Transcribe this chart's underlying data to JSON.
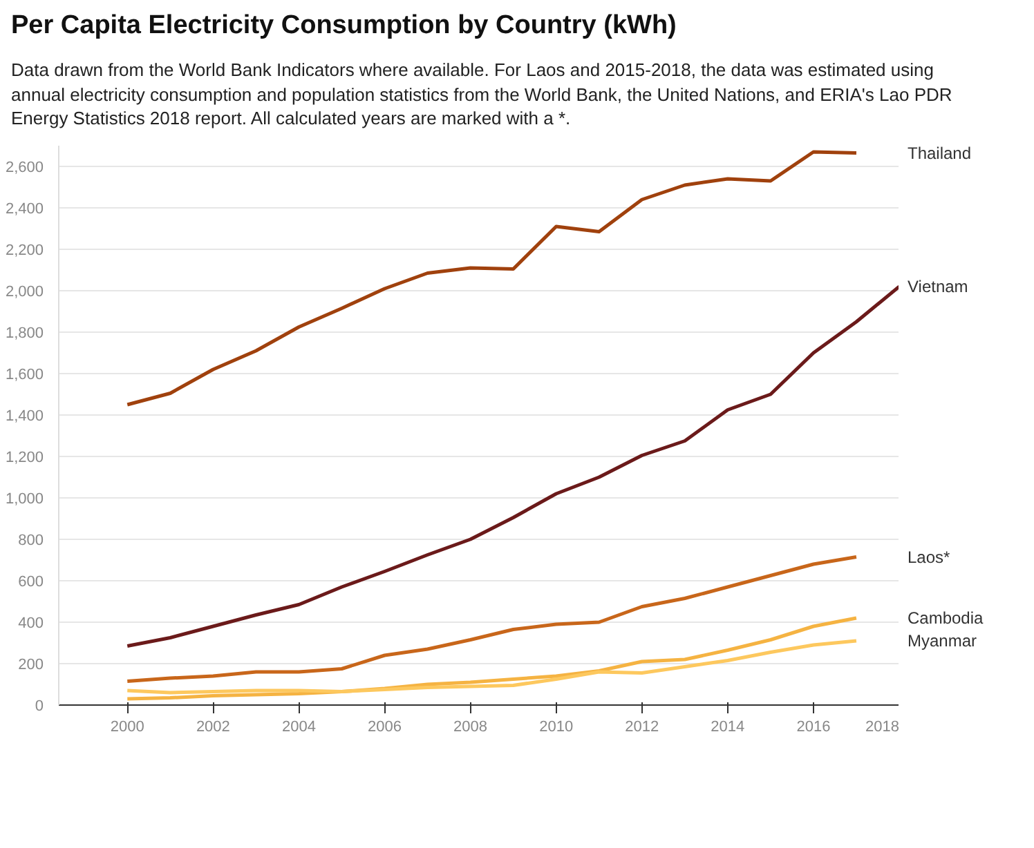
{
  "chart_data": {
    "type": "line",
    "title": "Per Capita Electricity Consumption by Country (kWh)",
    "subtitle": "Data drawn from the World Bank Indicators where available. For Laos and 2015-2018, the data was estimated using annual electricity consumption and population statistics from the World Bank, the United Nations, and ERIA's Lao PDR Energy Statistics 2018 report. All calculated years are marked with a *.",
    "x": [
      2000,
      2001,
      2002,
      2003,
      2004,
      2005,
      2006,
      2007,
      2008,
      2009,
      2010,
      2011,
      2012,
      2013,
      2014,
      2015,
      2016,
      2017,
      2018
    ],
    "series": [
      {
        "name": "Thailand",
        "color": "#a0410d",
        "values": [
          1450,
          1505,
          1620,
          1710,
          1825,
          1915,
          2010,
          2085,
          2110,
          2105,
          2310,
          2285,
          2440,
          2510,
          2540,
          2530,
          2670,
          2665,
          null
        ]
      },
      {
        "name": "Vietnam",
        "color": "#6b1a1a",
        "values": [
          285,
          325,
          380,
          435,
          485,
          570,
          645,
          725,
          800,
          905,
          1020,
          1100,
          1205,
          1275,
          1425,
          1500,
          1700,
          1850,
          2020
        ]
      },
      {
        "name": "Laos*",
        "color": "#c8661a",
        "values": [
          115,
          130,
          140,
          160,
          160,
          175,
          240,
          270,
          315,
          365,
          390,
          400,
          475,
          515,
          570,
          625,
          680,
          715,
          null
        ]
      },
      {
        "name": "Cambodia",
        "color": "#f5b342",
        "values": [
          30,
          35,
          45,
          50,
          55,
          65,
          80,
          100,
          110,
          125,
          140,
          165,
          210,
          220,
          265,
          315,
          380,
          420,
          null
        ]
      },
      {
        "name": "Myanmar",
        "color": "#fdc85e",
        "values": [
          70,
          60,
          65,
          70,
          70,
          65,
          75,
          85,
          90,
          95,
          125,
          160,
          155,
          185,
          215,
          255,
          290,
          310,
          null
        ]
      }
    ],
    "xlim": [
      1998.4,
      2018
    ],
    "ylim": [
      0,
      2700
    ],
    "xticks": [
      2000,
      2002,
      2004,
      2006,
      2008,
      2010,
      2012,
      2014,
      2016,
      2018
    ],
    "yticks": [
      0,
      200,
      400,
      600,
      800,
      {
        "value": 1000,
        "label": "1,000"
      },
      {
        "value": 1200,
        "label": "1,200"
      },
      {
        "value": 1400,
        "label": "1,400"
      },
      {
        "value": 1600,
        "label": "1,600"
      },
      {
        "value": 1800,
        "label": "1,800"
      },
      {
        "value": 2000,
        "label": "2,000"
      },
      {
        "value": 2200,
        "label": "2,200"
      },
      {
        "value": 2400,
        "label": "2,400"
      },
      {
        "value": 2600,
        "label": "2,600"
      }
    ],
    "grid": "y",
    "marker": "none",
    "line_style": "solid"
  }
}
